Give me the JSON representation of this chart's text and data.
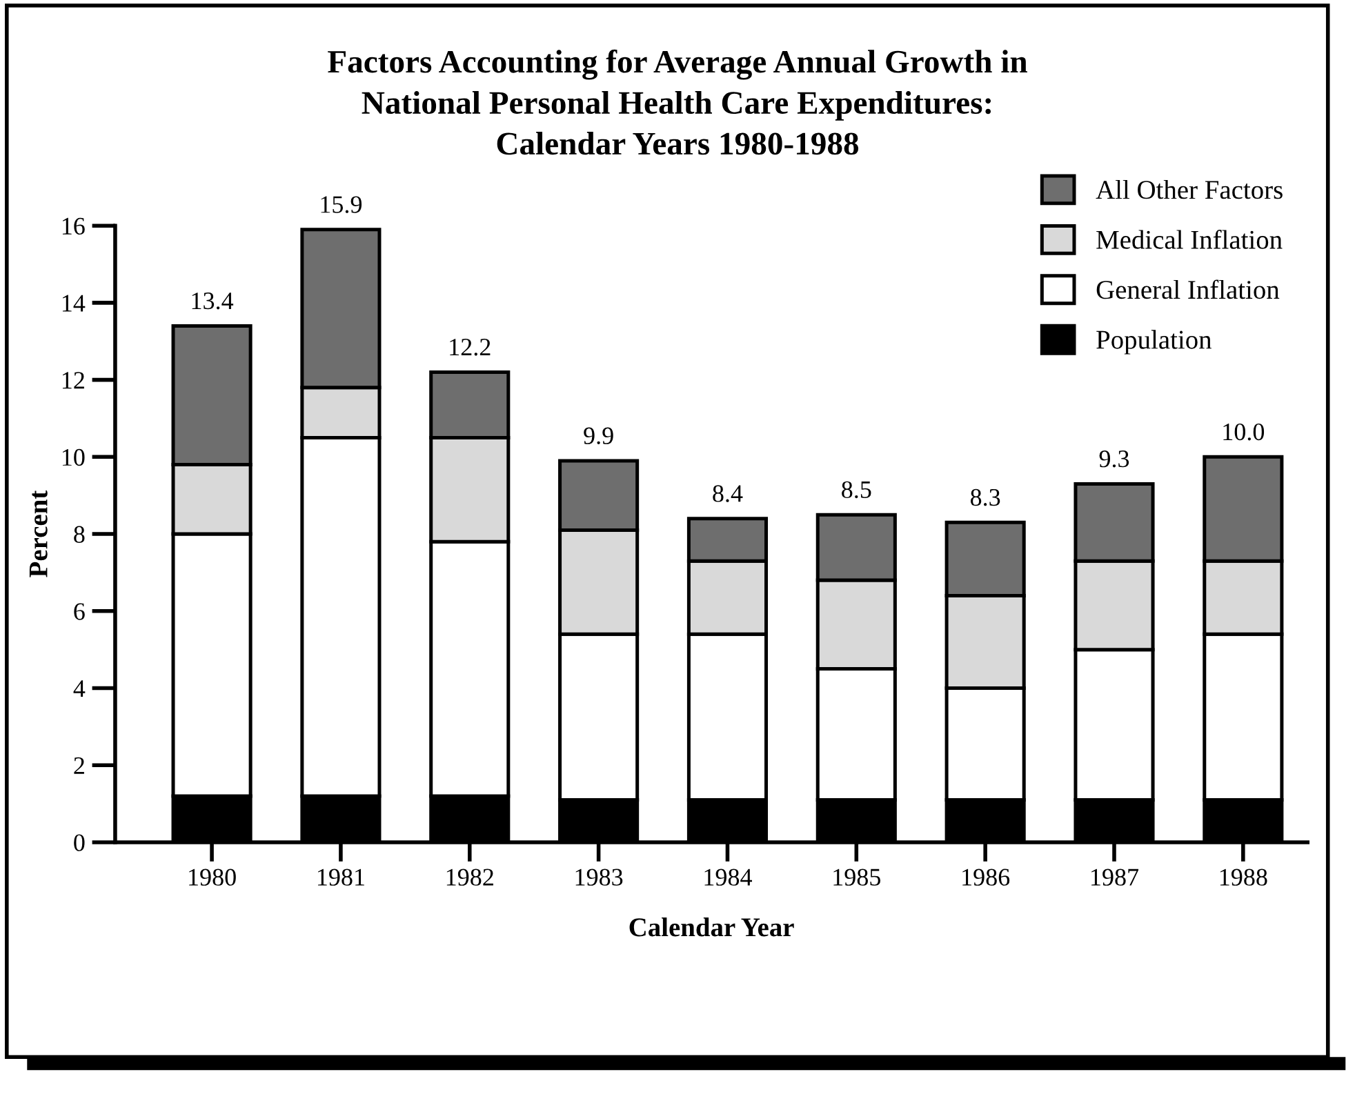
{
  "chart_data": {
    "type": "bar",
    "stacked": true,
    "title": "Factors Accounting for Average Annual Growth in\nNational Personal Health Care Expenditures:\nCalendar Years 1980-1988",
    "xlabel": "Calendar Year",
    "ylabel": "Percent",
    "categories": [
      "1980",
      "1981",
      "1982",
      "1983",
      "1984",
      "1985",
      "1986",
      "1987",
      "1988"
    ],
    "series": [
      {
        "name": "Population",
        "color": "#000000",
        "values": [
          1.2,
          1.2,
          1.2,
          1.1,
          1.1,
          1.1,
          1.1,
          1.1,
          1.1
        ]
      },
      {
        "name": "General Inflation",
        "color": "#ffffff",
        "values": [
          6.8,
          9.3,
          6.6,
          4.3,
          4.3,
          3.4,
          2.9,
          3.9,
          4.3
        ]
      },
      {
        "name": "Medical Inflation",
        "color": "#d9d9d9",
        "values": [
          1.8,
          1.3,
          2.7,
          2.7,
          1.9,
          2.3,
          2.4,
          2.3,
          1.9
        ]
      },
      {
        "name": "All Other Factors",
        "color": "#6e6e6e",
        "values": [
          3.6,
          4.1,
          1.7,
          1.8,
          1.1,
          1.7,
          1.9,
          2.0,
          2.7
        ]
      }
    ],
    "totals": [
      "13.4",
      "15.9",
      "12.2",
      "9.9",
      "8.4",
      "8.5",
      "8.3",
      "9.3",
      "10.0"
    ],
    "ylim": [
      0,
      16
    ],
    "yticks": [
      0,
      2,
      4,
      6,
      8,
      10,
      12,
      14,
      16
    ],
    "grid": false,
    "legend": "top right"
  }
}
